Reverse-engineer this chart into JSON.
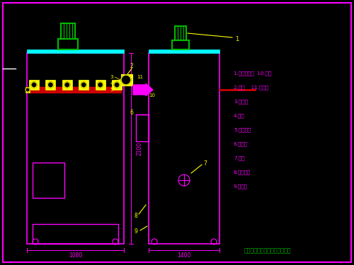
{
  "bg_color": "#000000",
  "border_color": "#ff00ff",
  "cyan_color": "#00ffff",
  "green_color": "#00bb00",
  "yellow_color": "#ffff00",
  "red_color": "#cc0000",
  "magenta_color": "#ff00ff",
  "white_color": "#ffffff",
  "legend_lines": [
    "1.除尘器入口  10.笛管",
    "2.气轮    11.噪音器",
    "3.过滤面",
    "4.气包",
    "5.气包活塞",
    "6.过滤板",
    "7.踢门",
    "8.茂水管路",
    "9.洗尘器"
  ],
  "company_text": "北京华康中天国际环保有限公司"
}
